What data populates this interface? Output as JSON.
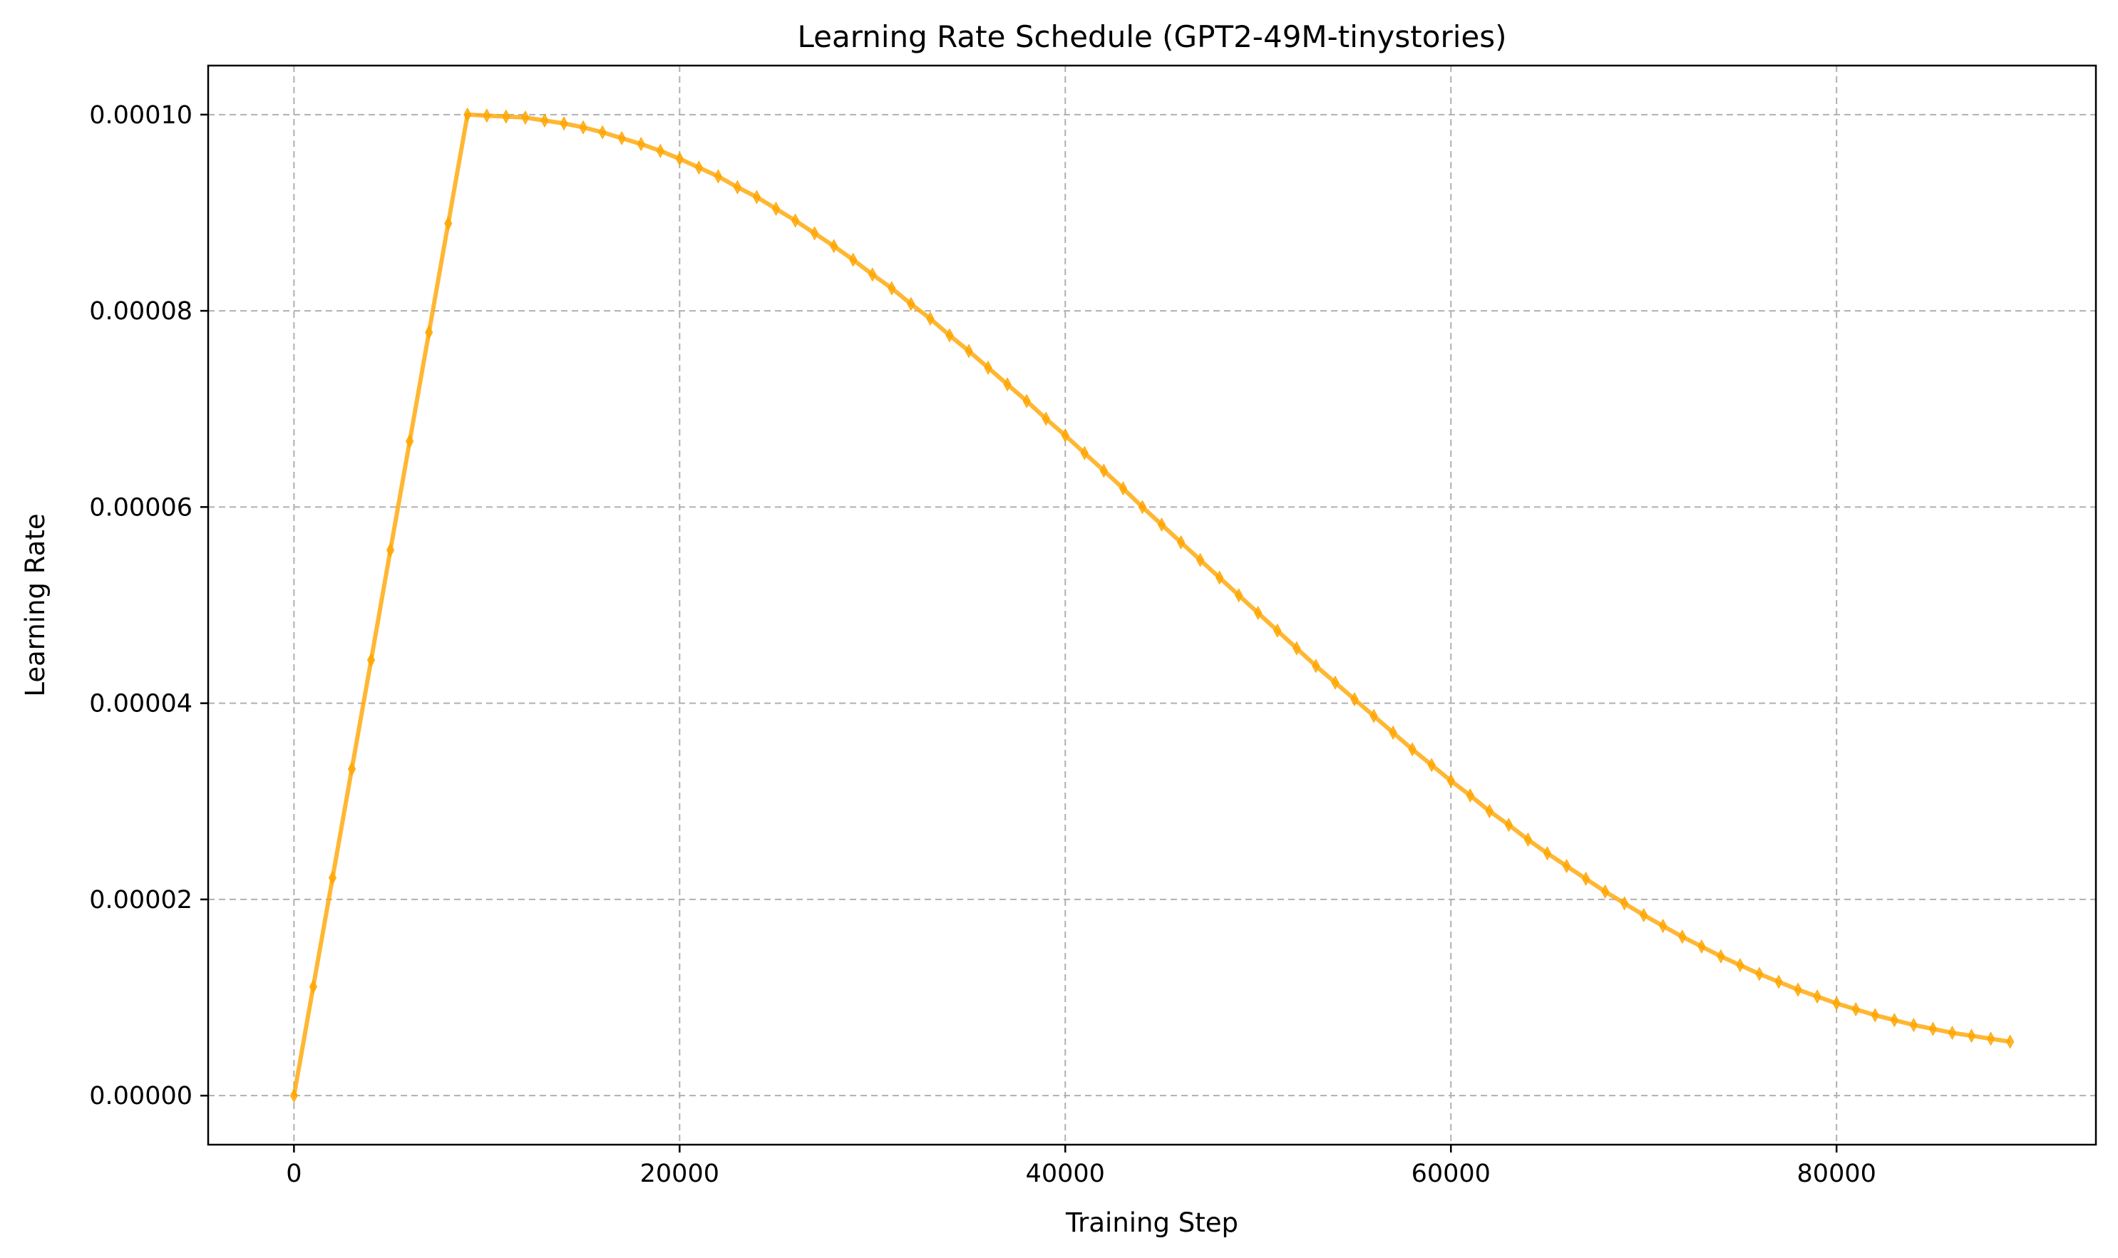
{
  "chart_data": {
    "type": "line",
    "title": "Learning Rate Schedule (GPT2-49M-tinystories)",
    "xlabel": "Training Step",
    "ylabel": "Learning Rate",
    "xlim": [
      -4450,
      93450
    ],
    "ylim": [
      -5e-06,
      0.000105
    ],
    "x_ticks": [
      0,
      20000,
      40000,
      60000,
      80000
    ],
    "x_tick_labels": [
      "0",
      "20000",
      "40000",
      "60000",
      "80000"
    ],
    "y_ticks": [
      0,
      2e-05,
      4e-05,
      6e-05,
      8e-05,
      0.0001
    ],
    "y_tick_labels": [
      "0.00000",
      "0.00002",
      "0.00004",
      "0.00006",
      "0.00008",
      "0.00010"
    ],
    "grid": true,
    "colors": {
      "line": "#FFA500",
      "grid": "#b0b0b0",
      "axes": "#000000"
    },
    "series": [
      {
        "marker": "diamond",
        "x": [
          0,
          1000,
          2000,
          3000,
          4000,
          5000,
          6000,
          7000,
          8000,
          9000,
          10000,
          11000,
          12000,
          13000,
          14000,
          15000,
          16000,
          17000,
          18000,
          19000,
          20000,
          21000,
          22000,
          23000,
          24000,
          25000,
          26000,
          27000,
          28000,
          29000,
          30000,
          31000,
          32000,
          33000,
          34000,
          35000,
          36000,
          37000,
          38000,
          39000,
          40000,
          41000,
          42000,
          43000,
          44000,
          45000,
          46000,
          47000,
          48000,
          49000,
          50000,
          51000,
          52000,
          53000,
          54000,
          55000,
          56000,
          57000,
          58000,
          59000,
          60000,
          61000,
          62000,
          63000,
          64000,
          65000,
          66000,
          67000,
          68000,
          69000,
          70000,
          71000,
          72000,
          73000,
          74000,
          75000,
          76000,
          77000,
          78000,
          79000,
          80000,
          81000,
          82000,
          83000,
          84000,
          85000,
          86000,
          87000,
          88000,
          89000
        ],
        "y": [
          0.0,
          1.11e-05,
          2.22e-05,
          3.33e-05,
          4.44e-05,
          5.56e-05,
          6.67e-05,
          7.78e-05,
          8.89e-05,
          0.0001,
          9.99e-05,
          9.98e-05,
          9.97e-05,
          9.94e-05,
          9.91e-05,
          9.87e-05,
          9.82e-05,
          9.76e-05,
          9.7e-05,
          9.63e-05,
          9.55e-05,
          9.46e-05,
          9.37e-05,
          9.26e-05,
          9.16e-05,
          9.04e-05,
          8.92e-05,
          8.79e-05,
          8.66e-05,
          8.52e-05,
          8.37e-05,
          8.23e-05,
          8.07e-05,
          7.92e-05,
          7.75e-05,
          7.59e-05,
          7.42e-05,
          7.25e-05,
          7.08e-05,
          6.9e-05,
          6.73e-05,
          6.55e-05,
          6.37e-05,
          6.19e-05,
          6e-05,
          5.82e-05,
          5.64e-05,
          5.46e-05,
          5.28e-05,
          5.1e-05,
          4.92e-05,
          4.74e-05,
          4.56e-05,
          4.38e-05,
          4.21e-05,
          4.04e-05,
          3.87e-05,
          3.7e-05,
          3.53e-05,
          3.37e-05,
          3.21e-05,
          3.06e-05,
          2.9e-05,
          2.76e-05,
          2.61e-05,
          2.47e-05,
          2.34e-05,
          2.21e-05,
          2.08e-05,
          1.96e-05,
          1.84e-05,
          1.73e-05,
          1.62e-05,
          1.52e-05,
          1.42e-05,
          1.33e-05,
          1.24e-05,
          1.16e-05,
          1.08e-05,
          1.01e-05,
          9.4e-06,
          8.8e-06,
          8.2e-06,
          7.7e-06,
          7.2e-06,
          6.8e-06,
          6.4e-06,
          6.1e-06,
          5.8e-06,
          5.5e-06
        ]
      }
    ]
  }
}
